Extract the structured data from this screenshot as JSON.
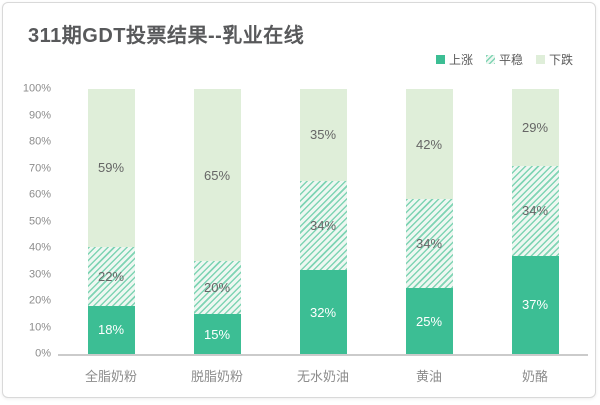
{
  "chart": {
    "title": "311期GDT投票结果--乳业在线"
  },
  "chart_data": {
    "type": "bar",
    "stacked": true,
    "unit": "%",
    "title": "311期GDT投票结果--乳业在线",
    "categories": [
      "全脂奶粉",
      "脱脂奶粉",
      "无水奶油",
      "黄油",
      "奶酪"
    ],
    "series": [
      {
        "name": "上涨",
        "style": "solid",
        "values": [
          18,
          15,
          32,
          25,
          37
        ]
      },
      {
        "name": "平稳",
        "style": "hatched",
        "values": [
          22,
          20,
          34,
          34,
          34
        ]
      },
      {
        "name": "下跌",
        "style": "light",
        "values": [
          59,
          65,
          35,
          42,
          29
        ]
      }
    ],
    "xlabel": "",
    "ylabel": "",
    "ylim": [
      0,
      100
    ],
    "yticks": [
      "0%",
      "10%",
      "20%",
      "30%",
      "40%",
      "50%",
      "60%",
      "70%",
      "80%",
      "90%",
      "100%"
    ],
    "legend_position": "top-right",
    "grid": false
  },
  "colors": {
    "rise": "#3cbe94",
    "fall": "#dfeed9",
    "stable_stripe": "#7fd4b4",
    "stable_bg": "#eef7f1",
    "title_text": "#58595b",
    "axis_text": "#8c8c8c",
    "label_dark": "#666666",
    "label_light": "#ffffff",
    "axis_line": "#cbcbcb",
    "card_border": "#d9d9d9"
  }
}
